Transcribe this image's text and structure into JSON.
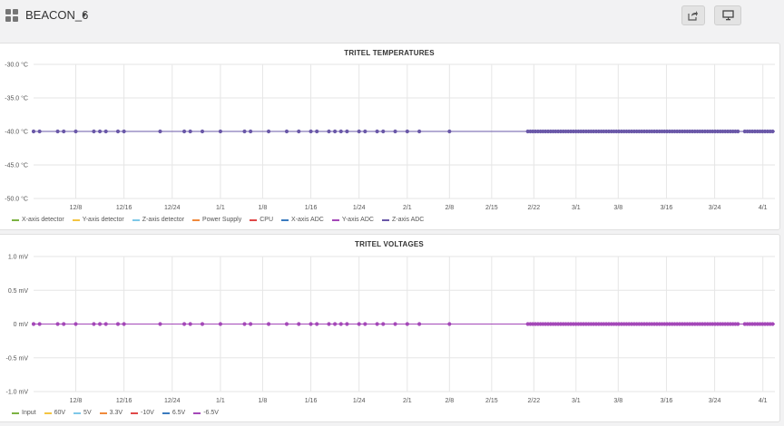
{
  "header": {
    "title": "BEACON_6",
    "share_icon": "share-icon",
    "monitor_icon": "monitor-icon"
  },
  "chart_data": [
    {
      "type": "scatter",
      "title": "TRITEL TEMPERATURES",
      "y_ticks": [
        "-30.0 °C",
        "-35.0 °C",
        "-40.0 °C",
        "-45.0 °C",
        "-50.0 °C"
      ],
      "ylim": [
        -50,
        -30
      ],
      "x_ticks": [
        "12/8",
        "12/16",
        "12/24",
        "1/1",
        "1/8",
        "1/16",
        "1/24",
        "2/1",
        "2/8",
        "2/15",
        "2/22",
        "3/1",
        "3/8",
        "3/16",
        "3/24",
        "4/1"
      ],
      "x_range": [
        "12/1",
        "4/3"
      ],
      "grid": true,
      "legend_position": "bottom",
      "series": [
        {
          "name": "X-axis detector",
          "color": "#7cb342"
        },
        {
          "name": "Y-axis detector",
          "color": "#f4c542"
        },
        {
          "name": "Z-axis detector",
          "color": "#7ec8e8"
        },
        {
          "name": "Power Supply",
          "color": "#f08a3c"
        },
        {
          "name": "CPU",
          "color": "#e04848"
        },
        {
          "name": "X-axis ADC",
          "color": "#3a7bbf"
        },
        {
          "name": "Y-axis ADC",
          "color": "#a448b8"
        },
        {
          "name": "Z-axis ADC",
          "color": "#6a58a8"
        }
      ],
      "y_value": -40,
      "sample_dates": [
        "12/1",
        "12/2",
        "12/5",
        "12/6",
        "12/8",
        "12/11",
        "12/12",
        "12/13",
        "12/15",
        "12/16",
        "12/22",
        "12/26",
        "12/27",
        "12/29",
        "1/1",
        "1/5",
        "1/6",
        "1/9",
        "1/12",
        "1/14",
        "1/16",
        "1/17",
        "1/19",
        "1/20",
        "1/21",
        "1/22",
        "1/24",
        "1/25",
        "1/27",
        "1/28",
        "1/30",
        "2/1",
        "2/3",
        "2/8"
      ],
      "dense_ranges": [
        [
          "2/21",
          "3/28"
        ],
        [
          "3/29",
          "4/3"
        ]
      ],
      "marker_color": "#6a58a8"
    },
    {
      "type": "scatter",
      "title": "TRITEL VOLTAGES",
      "y_ticks": [
        "1.0 mV",
        "0.5 mV",
        "0 mV",
        "-0.5 mV",
        "-1.0 mV"
      ],
      "ylim": [
        -1,
        1
      ],
      "x_ticks": [
        "12/8",
        "12/16",
        "12/24",
        "1/1",
        "1/8",
        "1/16",
        "1/24",
        "2/1",
        "2/8",
        "2/15",
        "2/22",
        "3/1",
        "3/8",
        "3/16",
        "3/24",
        "4/1"
      ],
      "x_range": [
        "12/1",
        "4/3"
      ],
      "grid": true,
      "legend_position": "bottom",
      "series": [
        {
          "name": "Input",
          "color": "#7cb342"
        },
        {
          "name": "60V",
          "color": "#f4c542"
        },
        {
          "name": "5V",
          "color": "#7ec8e8"
        },
        {
          "name": "3.3V",
          "color": "#f08a3c"
        },
        {
          "name": "-10V",
          "color": "#e04848"
        },
        {
          "name": "6.5V",
          "color": "#3a7bbf"
        },
        {
          "name": "-6.5V",
          "color": "#a448b8"
        }
      ],
      "y_value": 0,
      "sample_dates": [
        "12/1",
        "12/2",
        "12/5",
        "12/6",
        "12/8",
        "12/11",
        "12/12",
        "12/13",
        "12/15",
        "12/16",
        "12/22",
        "12/26",
        "12/27",
        "12/29",
        "1/1",
        "1/5",
        "1/6",
        "1/9",
        "1/12",
        "1/14",
        "1/16",
        "1/17",
        "1/19",
        "1/20",
        "1/21",
        "1/22",
        "1/24",
        "1/25",
        "1/27",
        "1/28",
        "1/30",
        "2/1",
        "2/3",
        "2/8"
      ],
      "dense_ranges": [
        [
          "2/21",
          "3/28"
        ],
        [
          "3/29",
          "4/3"
        ]
      ],
      "marker_color": "#a448b8"
    }
  ]
}
